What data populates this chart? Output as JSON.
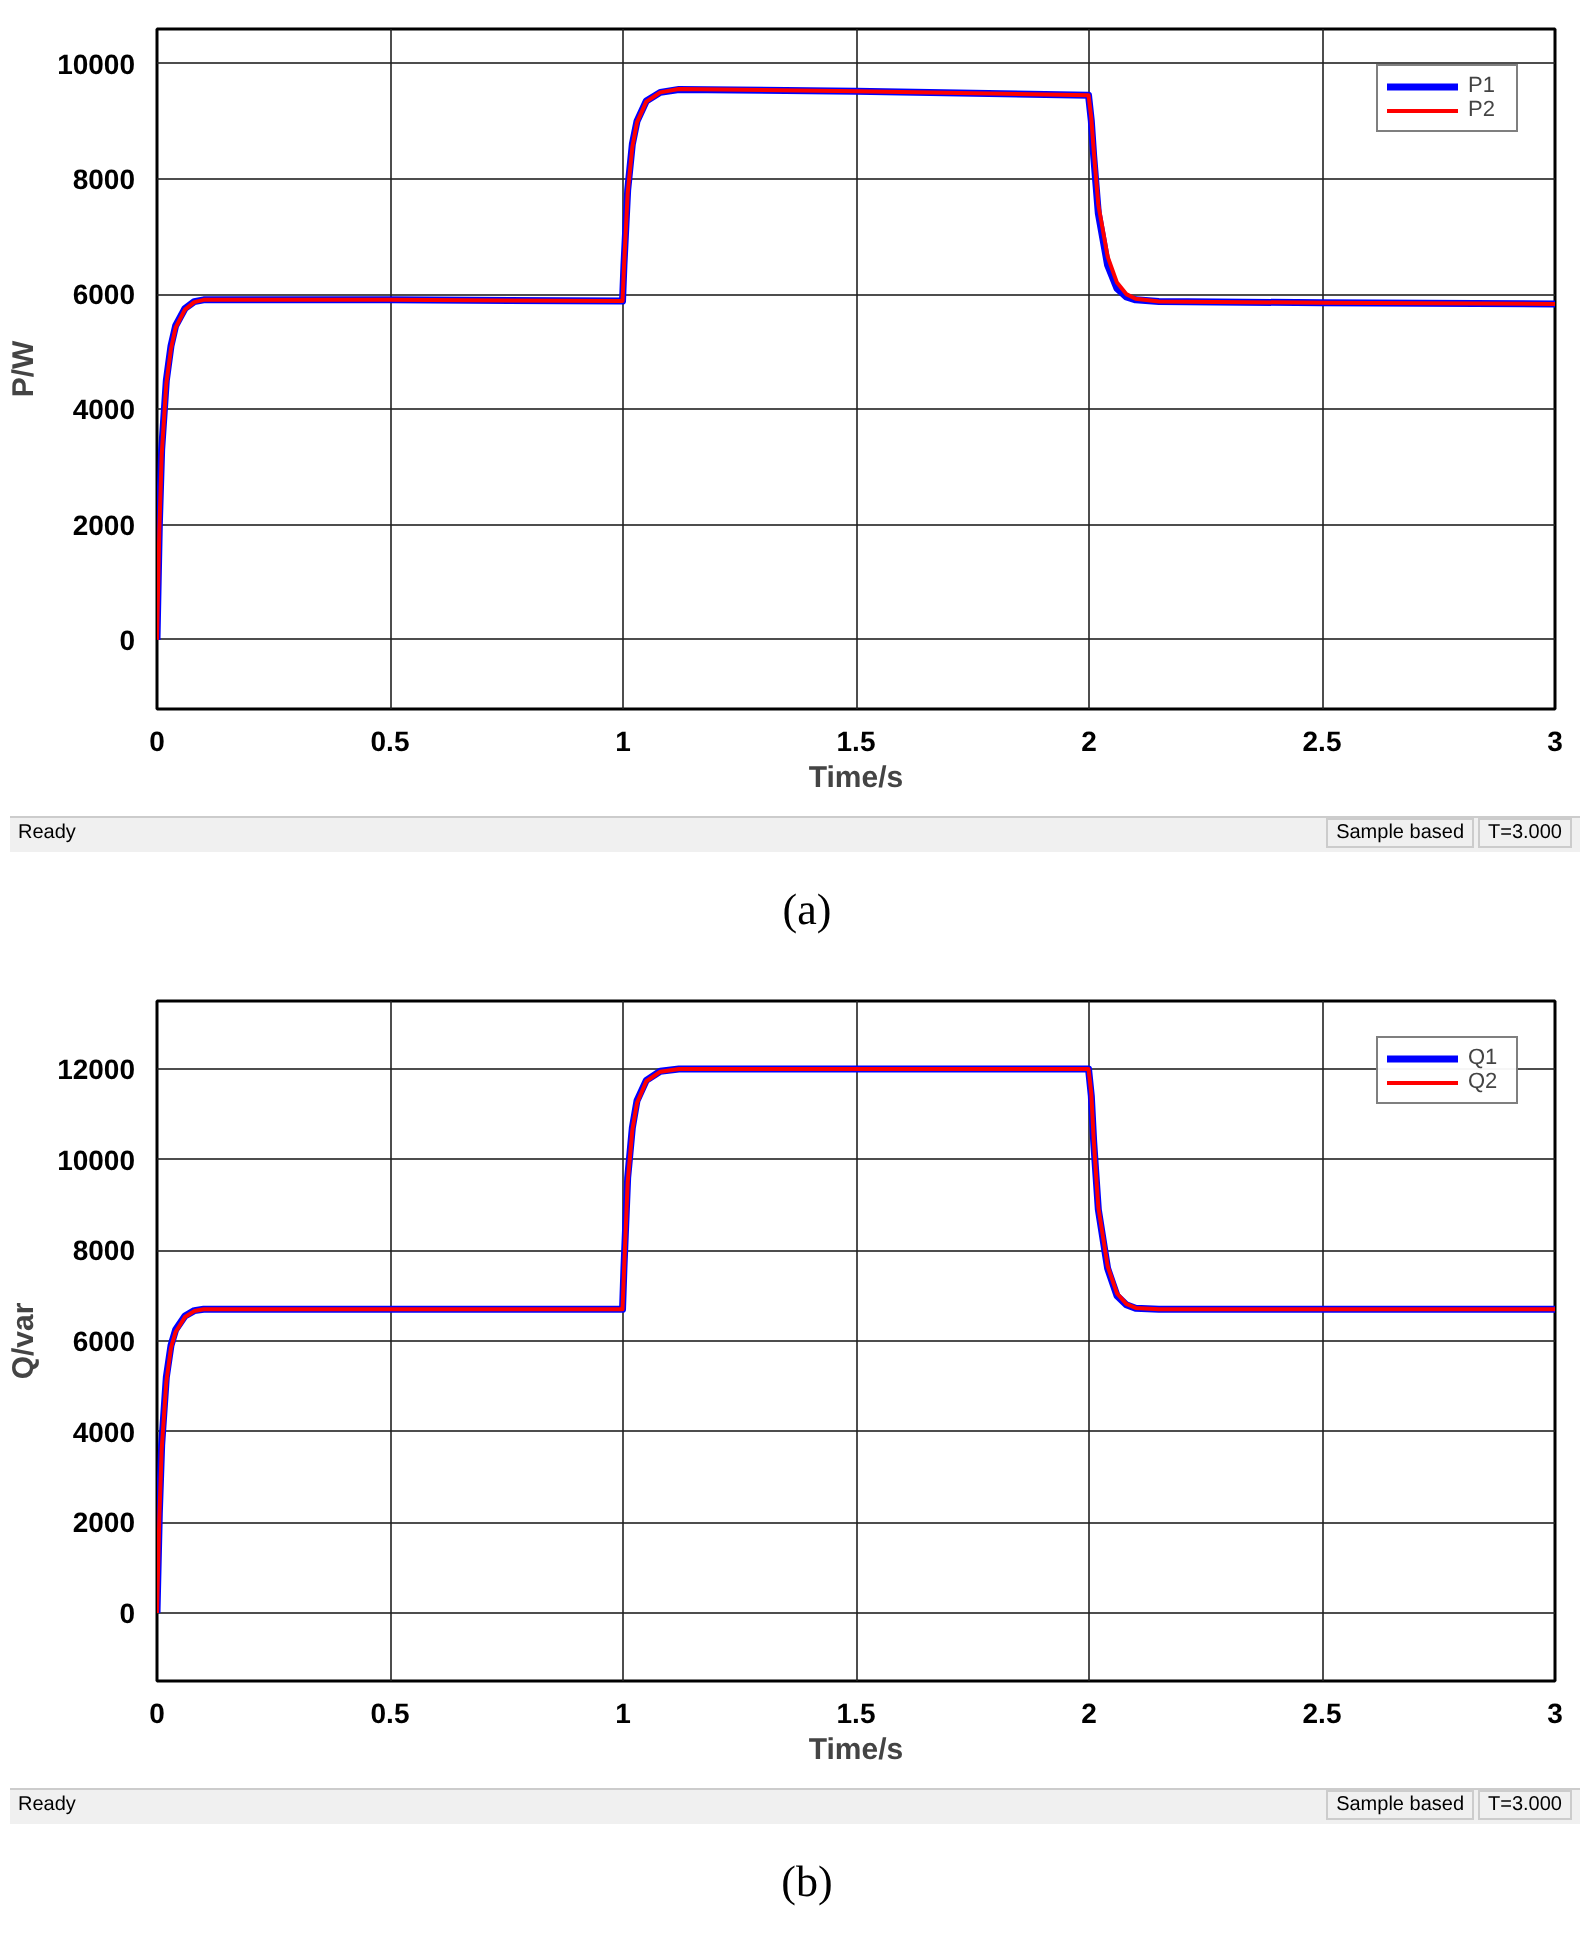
{
  "chart_data": [
    {
      "type": "line",
      "xlabel": "Time/s",
      "ylabel": "P/W",
      "xlim": [
        0,
        3
      ],
      "ylim": [
        -1200,
        10600
      ],
      "xticks": [
        0,
        0.5,
        1,
        1.5,
        2,
        2.5,
        3
      ],
      "yticks": [
        0,
        2000,
        4000,
        6000,
        8000,
        10000
      ],
      "grid": true,
      "legend": "top right",
      "line_style": "solid",
      "series": [
        {
          "name": "P1",
          "color": "#0000ff",
          "x": [
            0,
            0.005,
            0.01,
            0.02,
            0.03,
            0.04,
            0.06,
            0.08,
            0.1,
            0.5,
            0.999,
            1.002,
            1.01,
            1.02,
            1.03,
            1.05,
            1.08,
            1.12,
            1.5,
            1.999,
            2.005,
            2.01,
            2.02,
            2.04,
            2.06,
            2.08,
            2.1,
            2.15,
            2.5,
            3.0
          ],
          "values": [
            0,
            2000,
            3300,
            4500,
            5100,
            5450,
            5750,
            5870,
            5900,
            5900,
            5880,
            6500,
            7800,
            8600,
            9000,
            9350,
            9500,
            9550,
            9520,
            9450,
            9000,
            8400,
            7400,
            6500,
            6100,
            5950,
            5900,
            5870,
            5850,
            5830
          ]
        },
        {
          "name": "P2",
          "color": "#ff0000",
          "x": [
            0,
            0.005,
            0.01,
            0.02,
            0.03,
            0.04,
            0.06,
            0.08,
            0.1,
            0.5,
            0.999,
            1.002,
            1.01,
            1.02,
            1.03,
            1.05,
            1.08,
            1.12,
            1.5,
            1.999,
            2.005,
            2.01,
            2.02,
            2.04,
            2.06,
            2.08,
            2.1,
            2.15,
            2.5,
            3.0
          ],
          "values": [
            0,
            1900,
            3200,
            4450,
            5050,
            5420,
            5730,
            5860,
            5900,
            5900,
            5880,
            6450,
            7750,
            8550,
            8980,
            9340,
            9500,
            9560,
            9520,
            9450,
            9050,
            8500,
            7550,
            6650,
            6200,
            6000,
            5920,
            5870,
            5850,
            5830
          ]
        }
      ],
      "annotations": [
        "Ready",
        "Sample based",
        "T=3.000",
        "(a)"
      ]
    },
    {
      "type": "line",
      "xlabel": "Time/s",
      "ylabel": "Q/var",
      "xlim": [
        0,
        3
      ],
      "ylim": [
        -1500,
        13500
      ],
      "xticks": [
        0,
        0.5,
        1,
        1.5,
        2,
        2.5,
        3
      ],
      "yticks": [
        0,
        2000,
        4000,
        6000,
        8000,
        10000,
        12000
      ],
      "grid": true,
      "legend": "top right",
      "line_style": "solid",
      "series": [
        {
          "name": "Q1",
          "color": "#0000ff",
          "x": [
            0,
            0.005,
            0.01,
            0.02,
            0.03,
            0.04,
            0.06,
            0.08,
            0.1,
            0.5,
            0.999,
            1.002,
            1.01,
            1.02,
            1.03,
            1.05,
            1.08,
            1.12,
            1.5,
            1.999,
            2.005,
            2.01,
            2.02,
            2.04,
            2.06,
            2.08,
            2.1,
            2.15,
            2.5,
            3.0
          ],
          "values": [
            0,
            2200,
            3700,
            5200,
            5900,
            6250,
            6550,
            6670,
            6700,
            6700,
            6700,
            7600,
            9600,
            10700,
            11300,
            11750,
            11950,
            12000,
            12000,
            12000,
            11400,
            10400,
            8900,
            7600,
            7000,
            6800,
            6720,
            6700,
            6700,
            6700
          ]
        },
        {
          "name": "Q2",
          "color": "#ff0000",
          "x": [
            0,
            0.005,
            0.01,
            0.02,
            0.03,
            0.04,
            0.06,
            0.08,
            0.1,
            0.5,
            0.999,
            1.002,
            1.01,
            1.02,
            1.03,
            1.05,
            1.08,
            1.12,
            1.5,
            1.999,
            2.005,
            2.01,
            2.02,
            2.04,
            2.06,
            2.08,
            2.1,
            2.15,
            2.5,
            3.0
          ],
          "values": [
            0,
            2100,
            3600,
            5100,
            5850,
            6200,
            6530,
            6660,
            6700,
            6700,
            6700,
            7500,
            9500,
            10650,
            11250,
            11730,
            11940,
            12000,
            12000,
            12000,
            11450,
            10450,
            8950,
            7650,
            7050,
            6820,
            6730,
            6700,
            6700,
            6700
          ]
        }
      ],
      "annotations": [
        "Ready",
        "Sample based",
        "T=3.000",
        "(b)"
      ]
    }
  ]
}
